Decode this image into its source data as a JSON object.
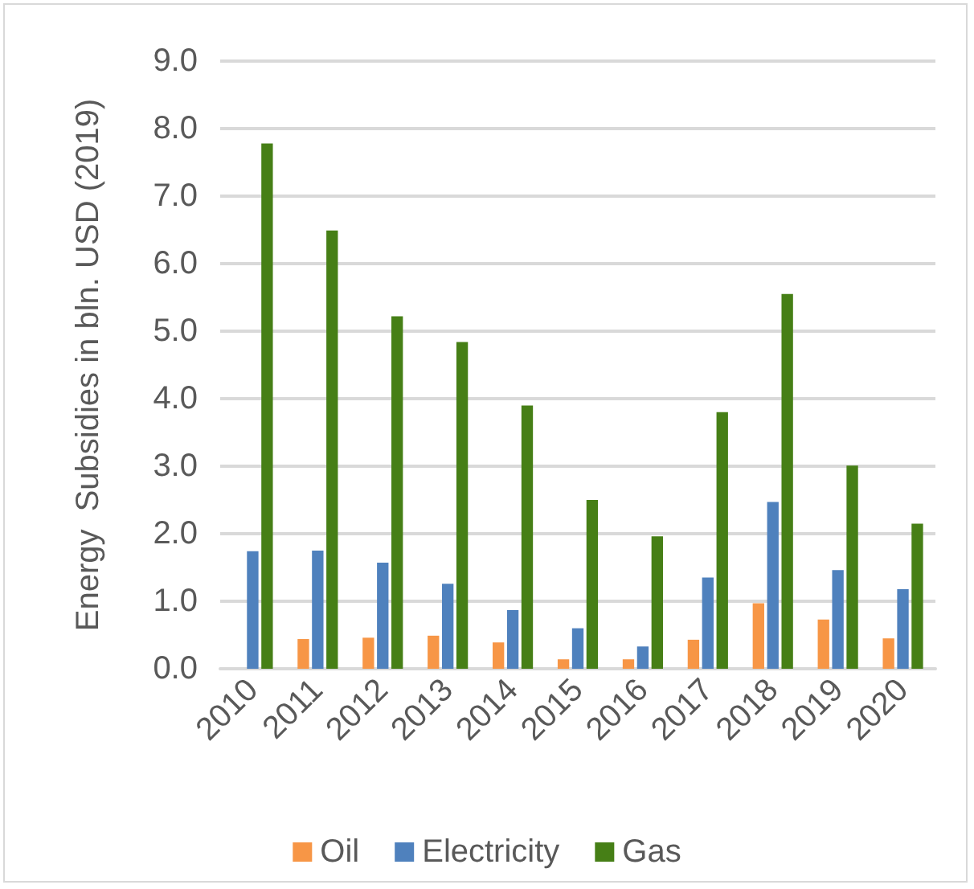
{
  "chart_data": {
    "type": "bar",
    "ylabel": "Energy  Subsidies in bln. USD (2019)",
    "categories": [
      "2010",
      "2011",
      "2012",
      "2013",
      "2014",
      "2015",
      "2016",
      "2017",
      "2018",
      "2019",
      "2020"
    ],
    "series": [
      {
        "name": "Oil",
        "color": "#f79646",
        "values": [
          null,
          0.44,
          0.46,
          0.49,
          0.39,
          0.14,
          0.14,
          0.43,
          0.97,
          0.73,
          0.45
        ]
      },
      {
        "name": "Electricity",
        "color": "#4f81bd",
        "values": [
          1.74,
          1.75,
          1.57,
          1.26,
          0.87,
          0.6,
          0.33,
          1.35,
          2.47,
          1.46,
          1.18
        ]
      },
      {
        "name": "Gas",
        "color": "#467f16",
        "values": [
          7.78,
          6.49,
          5.22,
          4.84,
          3.9,
          2.5,
          1.96,
          3.8,
          5.55,
          3.01,
          2.15
        ]
      }
    ],
    "ylim": [
      0,
      9
    ],
    "yticks": [
      {
        "value": 0,
        "label": "0.0"
      },
      {
        "value": 1,
        "label": "1.0"
      },
      {
        "value": 2,
        "label": "2.0"
      },
      {
        "value": 3,
        "label": "3.0"
      },
      {
        "value": 4,
        "label": "4.0"
      },
      {
        "value": 5,
        "label": "5.0"
      },
      {
        "value": 6,
        "label": "6.0"
      },
      {
        "value": 7,
        "label": "7.0"
      },
      {
        "value": 8,
        "label": "8.0"
      },
      {
        "value": 9,
        "label": "9.0"
      }
    ],
    "grid": "y",
    "legend": "bottom"
  }
}
